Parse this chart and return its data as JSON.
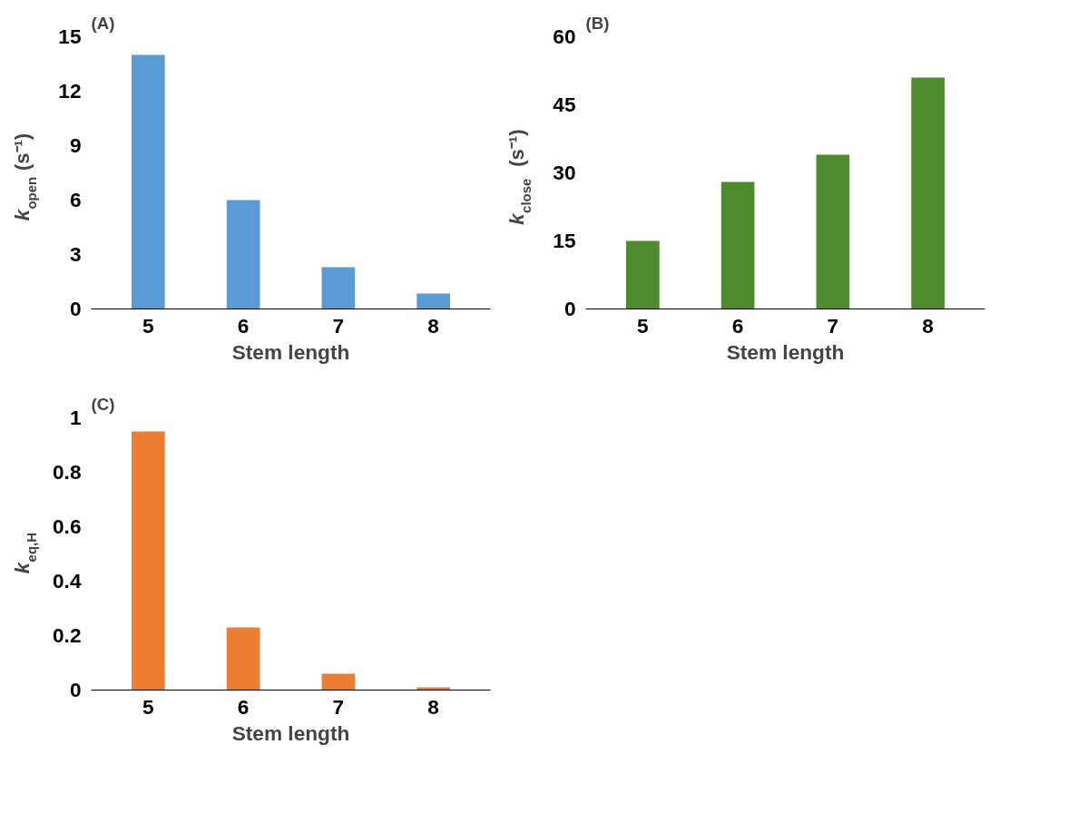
{
  "chart_data": [
    {
      "type": "bar",
      "annotations": [
        "(A)"
      ],
      "xlabel": "Stem length",
      "ylabel": "k$_{open}$ (s⁻¹)",
      "categories": [
        "5",
        "6",
        "7",
        "8"
      ],
      "values": [
        14,
        6,
        2.3,
        0.85
      ],
      "color": "#5b9bd5",
      "ylim": [
        0,
        15
      ],
      "yticks": [
        0,
        3,
        6,
        9,
        12,
        15
      ],
      "grid": false
    },
    {
      "type": "bar",
      "annotations": [
        "(B)"
      ],
      "xlabel": "Stem length",
      "ylabel": "k$_{close}$ (s⁻¹)",
      "categories": [
        "5",
        "6",
        "7",
        "8"
      ],
      "values": [
        15,
        28,
        34,
        51
      ],
      "color": "#4e8a2e",
      "ylim": [
        0,
        60
      ],
      "yticks": [
        0,
        15,
        30,
        45,
        60
      ],
      "grid": false
    },
    {
      "type": "bar",
      "annotations": [
        "(C)"
      ],
      "xlabel": "Stem length",
      "ylabel": "k$_{eq,H}$",
      "categories": [
        "5",
        "6",
        "7",
        "8"
      ],
      "values": [
        0.95,
        0.23,
        0.06,
        0.01
      ],
      "color": "#ed7d31",
      "ylim": [
        0,
        1
      ],
      "yticks": [
        0,
        0.2,
        0.4,
        0.6,
        0.8,
        1
      ],
      "grid": false
    }
  ]
}
